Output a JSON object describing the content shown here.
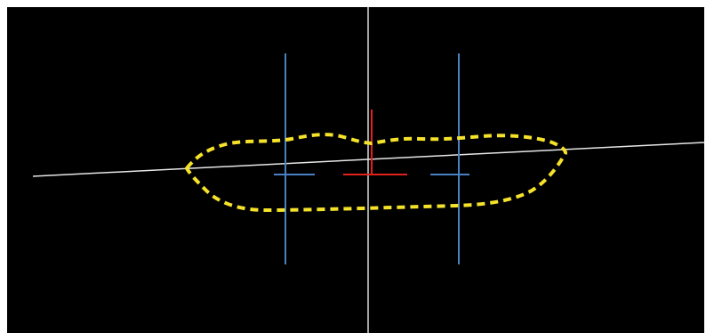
{
  "colors": {
    "background": "#000000",
    "frame": "#ffffff",
    "midline": "#d9d9d9",
    "tilt_line": "#e6e6e6",
    "outline": "#f5e22a",
    "vertical_guides": "#4a7fc1",
    "center_marker": "#e0211c"
  },
  "elements": {
    "outline": "lips-outline",
    "midline": "vertical-midline",
    "tilt_line": "commissure-line",
    "left_guide": "left-vertical-guide",
    "right_guide": "right-vertical-guide",
    "center_marker": "center-t-marker"
  }
}
